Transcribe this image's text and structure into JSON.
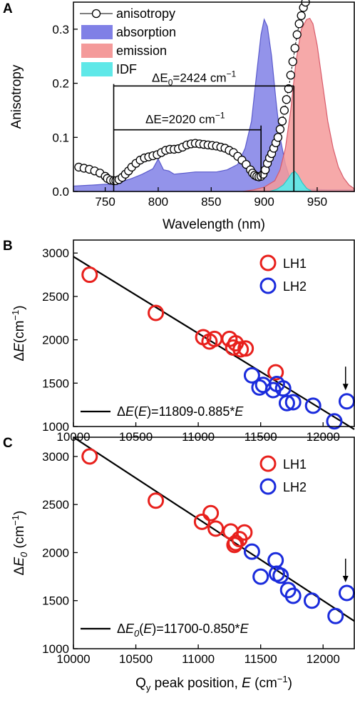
{
  "chart_data": [
    {
      "panel": "A",
      "type": "line",
      "xlabel": "Wavelength (nm)",
      "ylabel": "Anisotropy",
      "xlim": [
        720,
        985
      ],
      "ylim": [
        0,
        0.35
      ],
      "xticks": [
        "750",
        "800",
        "850",
        "900",
        "950"
      ],
      "yticks": [
        "0.0",
        "0.1",
        "0.2",
        "0.3"
      ],
      "legend": [
        "anisotropy",
        "absorption",
        "emission",
        "IDF"
      ],
      "annotations": {
        "dE0": {
          "prefix": "ΔE",
          "sub": "0",
          "value": "=2424 cm",
          "sup": "−1"
        },
        "dE": {
          "prefix": "ΔE",
          "value": "=2020 cm",
          "sup": "−1"
        }
      },
      "series": [
        {
          "name": "anisotropy",
          "marker": "open-circle",
          "x": [
            725,
            730,
            735,
            740,
            745,
            750,
            752,
            755,
            758,
            760,
            763,
            766,
            769,
            772,
            775,
            779,
            783,
            787,
            791,
            795,
            799,
            803,
            807,
            811,
            815,
            819,
            823,
            827,
            831,
            835,
            839,
            843,
            847,
            851,
            855,
            859,
            863,
            867,
            871,
            875,
            879,
            883,
            887,
            889,
            891,
            893,
            895,
            897,
            899,
            901,
            903,
            905,
            907,
            909,
            911,
            913,
            915,
            917,
            919,
            921,
            923,
            925,
            927,
            929,
            931,
            933,
            935,
            937,
            939
          ],
          "y": [
            0.045,
            0.043,
            0.041,
            0.038,
            0.034,
            0.028,
            0.024,
            0.021,
            0.02,
            0.02,
            0.022,
            0.026,
            0.032,
            0.038,
            0.045,
            0.052,
            0.058,
            0.062,
            0.064,
            0.066,
            0.068,
            0.072,
            0.076,
            0.078,
            0.078,
            0.079,
            0.082,
            0.086,
            0.088,
            0.089,
            0.088,
            0.087,
            0.086,
            0.085,
            0.084,
            0.082,
            0.08,
            0.076,
            0.072,
            0.065,
            0.058,
            0.05,
            0.04,
            0.034,
            0.03,
            0.028,
            0.027,
            0.028,
            0.032,
            0.04,
            0.052,
            0.062,
            0.07,
            0.08,
            0.09,
            0.1,
            0.115,
            0.13,
            0.15,
            0.17,
            0.19,
            0.215,
            0.24,
            0.265,
            0.29,
            0.31,
            0.325,
            0.34,
            0.35
          ]
        },
        {
          "name": "absorption",
          "color": "#8080e6",
          "x": [
            720,
            740,
            755,
            765,
            775,
            785,
            795,
            800,
            805,
            810,
            815,
            825,
            835,
            845,
            855,
            865,
            875,
            882,
            888,
            893,
            897,
            900,
            903,
            907,
            911,
            915,
            920,
            925,
            930,
            940,
            960,
            985
          ],
          "y": [
            0.01,
            0.012,
            0.014,
            0.018,
            0.024,
            0.032,
            0.042,
            0.06,
            0.04,
            0.038,
            0.032,
            0.034,
            0.036,
            0.036,
            0.036,
            0.04,
            0.05,
            0.08,
            0.13,
            0.22,
            0.29,
            0.318,
            0.305,
            0.25,
            0.17,
            0.1,
            0.05,
            0.02,
            0.008,
            0.004,
            0.003,
            0.003
          ]
        },
        {
          "name": "emission",
          "color": "#f49a9a",
          "x": [
            880,
            890,
            900,
            910,
            915,
            920,
            925,
            930,
            935,
            940,
            943,
            946,
            950,
            955,
            960,
            965,
            970,
            975,
            980,
            985
          ],
          "y": [
            0.0,
            0.003,
            0.008,
            0.02,
            0.04,
            0.08,
            0.15,
            0.24,
            0.3,
            0.318,
            0.32,
            0.31,
            0.27,
            0.2,
            0.13,
            0.08,
            0.045,
            0.025,
            0.012,
            0.005
          ]
        },
        {
          "name": "IDF",
          "color": "#5fe8e8",
          "x": [
            905,
            912,
            918,
            922,
            926,
            929,
            932,
            936,
            940,
            945
          ],
          "y": [
            0.0,
            0.004,
            0.012,
            0.022,
            0.034,
            0.037,
            0.03,
            0.016,
            0.006,
            0.0
          ]
        }
      ]
    },
    {
      "panel": "B",
      "type": "scatter",
      "xlabel": "",
      "ylabel": "ΔE(cm⁻¹)",
      "xlim": [
        10000,
        12250
      ],
      "ylim": [
        1000,
        3150
      ],
      "xticks": [
        "10000",
        "10500",
        "11000",
        "11500",
        "12000"
      ],
      "yticks": [
        "1000",
        "1500",
        "2000",
        "2500",
        "3000"
      ],
      "fit": {
        "label": "ΔE(E)=11809-0.885*E",
        "intercept": 11809,
        "slope": -0.885
      },
      "arrow_at": [
        12180,
        1295
      ],
      "series": [
        {
          "name": "LH1",
          "color": "#e8201c",
          "x": [
            10130,
            10660,
            11040,
            11090,
            11130,
            11250,
            11280,
            11300,
            11340,
            11380,
            11620
          ],
          "y": [
            2750,
            2310,
            2030,
            1980,
            2010,
            2010,
            1910,
            1960,
            1890,
            1900,
            1625
          ]
        },
        {
          "name": "LH2",
          "color": "#1a2bdc",
          "x": [
            11430,
            11490,
            11520,
            11600,
            11630,
            11680,
            11710,
            11760,
            11920,
            12090,
            12190
          ],
          "y": [
            1590,
            1450,
            1480,
            1420,
            1490,
            1440,
            1270,
            1280,
            1240,
            1060,
            1290
          ]
        }
      ]
    },
    {
      "panel": "C",
      "type": "scatter",
      "xlabel": "Q_y peak position, E (cm⁻¹)",
      "ylabel": "ΔE₀ (cm⁻¹)",
      "xlim": [
        10000,
        12250
      ],
      "ylim": [
        1000,
        3200
      ],
      "xticks": [
        "10000",
        "10500",
        "11000",
        "11500",
        "12000"
      ],
      "yticks": [
        "1000",
        "1500",
        "2000",
        "2500",
        "3000"
      ],
      "fit": {
        "label": "ΔE₀(E)=11700-0.850*E",
        "intercept": 11700,
        "slope": -0.85
      },
      "arrow_at": [
        12180,
        1580
      ],
      "series": [
        {
          "name": "LH1",
          "color": "#e8201c",
          "x": [
            10130,
            10660,
            11030,
            11100,
            11140,
            11260,
            11290,
            11300,
            11330,
            11370
          ],
          "y": [
            3000,
            2540,
            2320,
            2410,
            2250,
            2220,
            2080,
            2100,
            2140,
            2210
          ]
        },
        {
          "name": "LH2",
          "color": "#1a2bdc",
          "x": [
            11430,
            11500,
            11620,
            11630,
            11660,
            11720,
            11760,
            11910,
            12100,
            12190
          ],
          "y": [
            2010,
            1750,
            1920,
            1780,
            1760,
            1610,
            1550,
            1500,
            1340,
            1580
          ]
        }
      ]
    }
  ]
}
